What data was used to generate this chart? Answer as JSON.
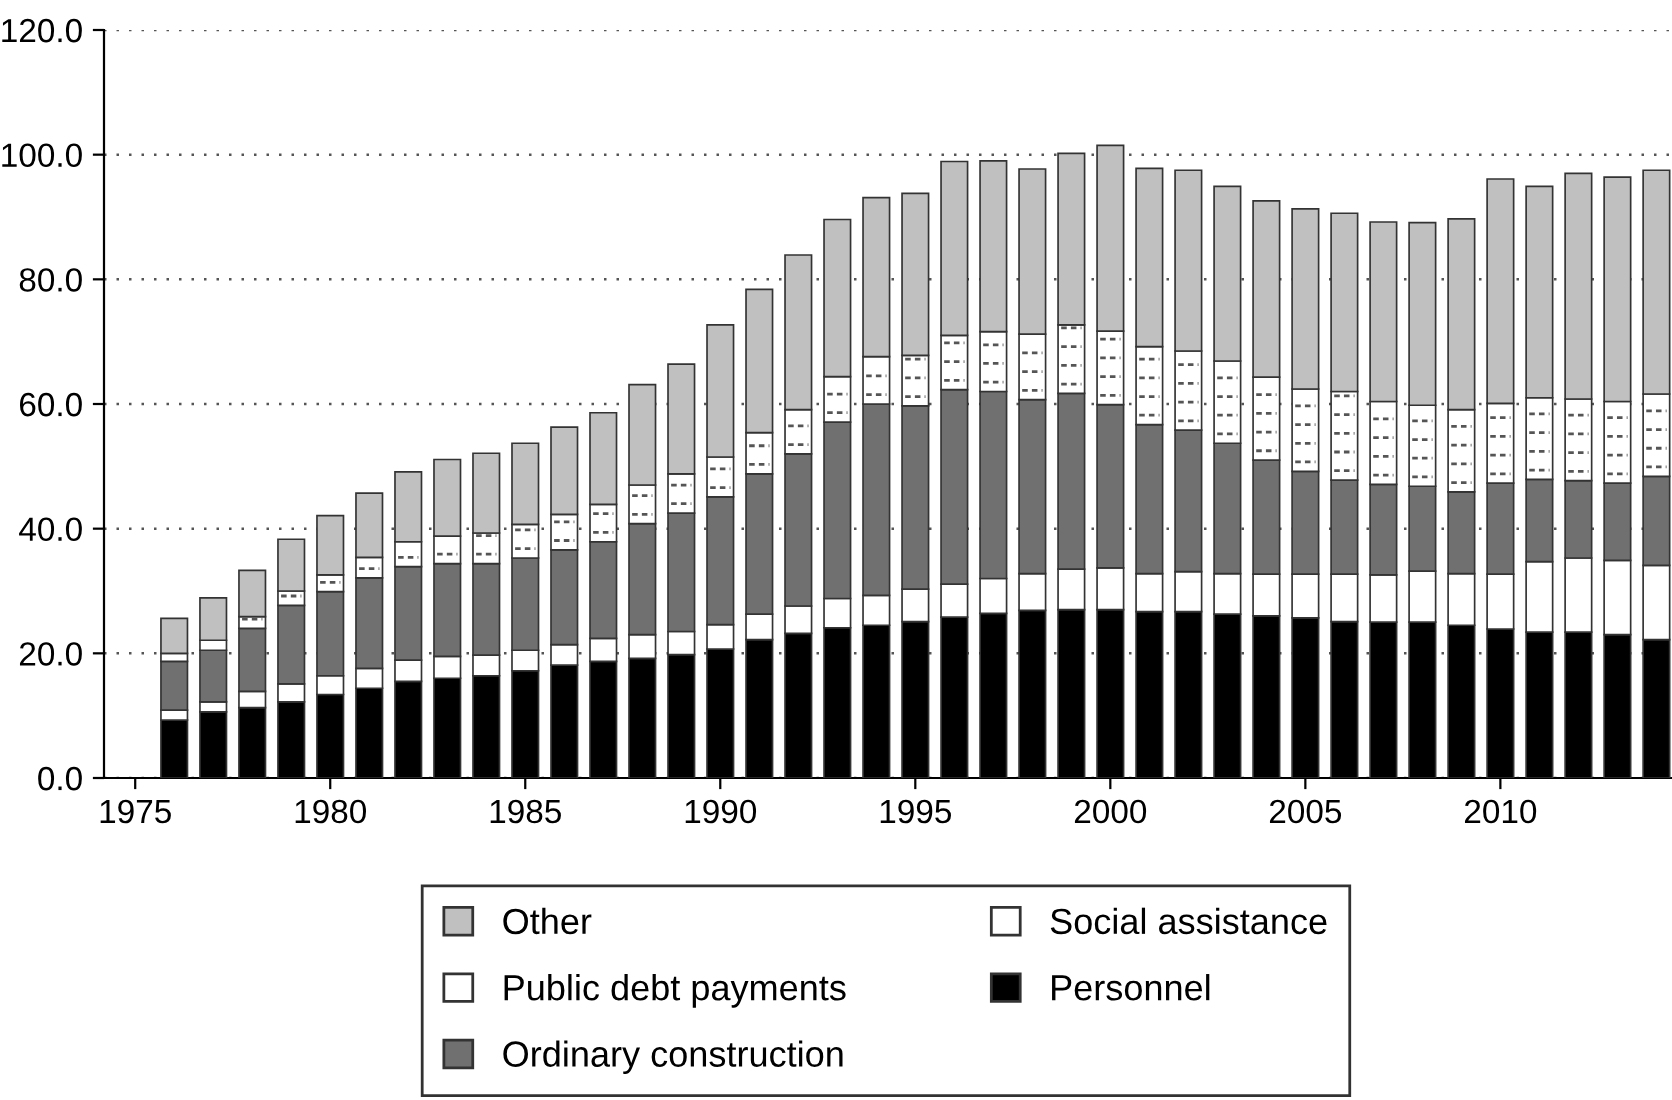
{
  "chart_data": {
    "type": "bar",
    "stacked": true,
    "x": [
      1976,
      1977,
      1978,
      1979,
      1980,
      1981,
      1982,
      1983,
      1984,
      1985,
      1986,
      1987,
      1988,
      1989,
      1990,
      1991,
      1992,
      1993,
      1994,
      1995,
      1996,
      1997,
      1998,
      1999,
      2000,
      2001,
      2002,
      2003,
      2004,
      2005,
      2006,
      2007,
      2008,
      2009,
      2010,
      2011,
      2012,
      2013,
      2014
    ],
    "series": [
      {
        "name": "Personnel",
        "color": "#000000",
        "values": [
          9.3,
          10.6,
          11.3,
          12.2,
          13.4,
          14.4,
          15.5,
          16.0,
          16.4,
          17.2,
          18.1,
          18.7,
          19.2,
          19.8,
          20.7,
          22.2,
          23.2,
          24.1,
          24.5,
          25.1,
          25.8,
          26.4,
          26.9,
          27.0,
          27.0,
          26.7,
          26.7,
          26.3,
          26.0,
          25.7,
          25.1,
          25.0,
          25.0,
          24.5,
          23.9,
          23.4,
          23.4,
          23.0,
          22.2
        ]
      },
      {
        "name": "Social assistance",
        "color": "#ffffff",
        "values": [
          1.6,
          1.6,
          2.6,
          2.9,
          3.0,
          3.2,
          3.4,
          3.5,
          3.3,
          3.3,
          3.3,
          3.7,
          3.8,
          3.7,
          3.9,
          4.1,
          4.4,
          4.7,
          4.8,
          5.2,
          5.3,
          5.6,
          5.9,
          6.5,
          6.7,
          6.1,
          6.4,
          6.5,
          6.7,
          7.0,
          7.6,
          7.6,
          8.2,
          8.3,
          8.8,
          11.3,
          11.9,
          11.9,
          11.9
        ]
      },
      {
        "name": "Ordinary construction",
        "color": "#707070",
        "values": [
          7.8,
          8.3,
          10.1,
          12.6,
          13.5,
          14.5,
          15.0,
          14.9,
          14.7,
          14.8,
          15.2,
          15.5,
          17.8,
          19.0,
          20.5,
          22.5,
          24.4,
          28.3,
          30.7,
          29.4,
          31.2,
          30.0,
          27.9,
          28.2,
          26.2,
          23.9,
          22.7,
          20.9,
          18.3,
          16.5,
          15.1,
          14.5,
          13.6,
          13.1,
          14.6,
          13.2,
          12.4,
          12.4,
          14.3
        ]
      },
      {
        "name": "Public debt payments",
        "color": "#ffffff",
        "line_style": "dashed",
        "values": [
          1.3,
          1.6,
          1.9,
          2.3,
          2.7,
          3.3,
          4.0,
          4.4,
          4.9,
          5.4,
          5.7,
          6.0,
          6.2,
          6.3,
          6.4,
          6.6,
          7.1,
          7.3,
          7.6,
          8.1,
          8.7,
          9.6,
          10.5,
          11.0,
          11.8,
          12.5,
          12.7,
          13.2,
          13.3,
          13.2,
          14.2,
          13.3,
          13.0,
          13.2,
          12.8,
          13.1,
          13.1,
          13.1,
          13.2
        ]
      },
      {
        "name": "Other",
        "color": "#c0c0c0",
        "values": [
          5.6,
          6.8,
          7.4,
          8.3,
          9.5,
          10.3,
          11.2,
          12.3,
          12.8,
          13.0,
          14.0,
          14.7,
          16.1,
          17.6,
          21.2,
          23.0,
          24.8,
          25.2,
          25.5,
          26.0,
          27.9,
          27.4,
          26.5,
          27.5,
          29.8,
          28.6,
          29.0,
          28.0,
          28.3,
          28.9,
          28.6,
          28.8,
          29.3,
          30.6,
          36.0,
          33.9,
          36.2,
          36.0,
          35.9
        ]
      }
    ],
    "xlim": [
      1974.2,
      2014.4
    ],
    "xticks": [
      1975,
      1980,
      1985,
      1990,
      1995,
      2000,
      2005,
      2010
    ],
    "ylim": [
      0,
      120
    ],
    "yticks": [
      {
        "value": 0,
        "label": "0.0"
      },
      {
        "value": 20,
        "label": "20.0"
      },
      {
        "value": 40,
        "label": "40.0"
      },
      {
        "value": 60,
        "label": "60.0"
      },
      {
        "value": 80,
        "label": "80.0"
      },
      {
        "value": 100,
        "label": "100.0"
      },
      {
        "value": 120,
        "label": "120.0"
      }
    ],
    "grid": "y",
    "legend": "bottom"
  }
}
